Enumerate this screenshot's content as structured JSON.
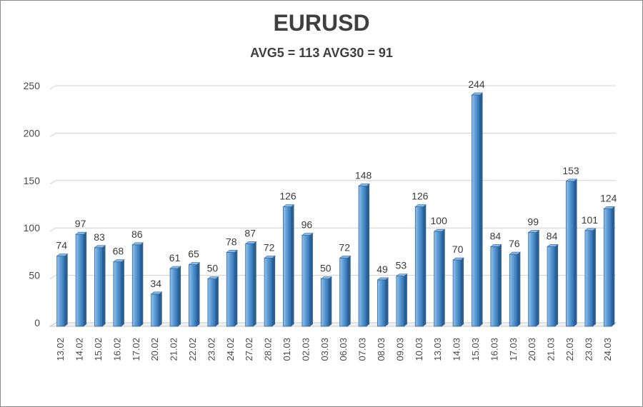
{
  "chart_data": {
    "type": "bar",
    "title": "EURUSD",
    "subtitle": "AVG5 = 113 AVG30 = 91",
    "categories": [
      "13.02",
      "14.02",
      "15.02",
      "16.02",
      "17.02",
      "20.02",
      "21.02",
      "22.02",
      "23.02",
      "24.02",
      "27.02",
      "28.02",
      "01.03",
      "02.03",
      "03.03",
      "06.03",
      "07.03",
      "08.03",
      "09.03",
      "10.03",
      "13.03",
      "14.03",
      "15.03",
      "16.03",
      "17.03",
      "20.03",
      "21.03",
      "22.03",
      "23.03",
      "24.03"
    ],
    "values": [
      74,
      97,
      83,
      68,
      86,
      34,
      61,
      65,
      50,
      78,
      87,
      72,
      126,
      96,
      50,
      72,
      148,
      49,
      53,
      126,
      100,
      70,
      244,
      84,
      76,
      99,
      84,
      153,
      101,
      124
    ],
    "ylim": [
      0,
      250
    ],
    "yticks": [
      0,
      50,
      100,
      150,
      200,
      250
    ],
    "grid": true,
    "bar_color": "#5b9bd5",
    "bar_dark_color": "#2e6da4"
  }
}
